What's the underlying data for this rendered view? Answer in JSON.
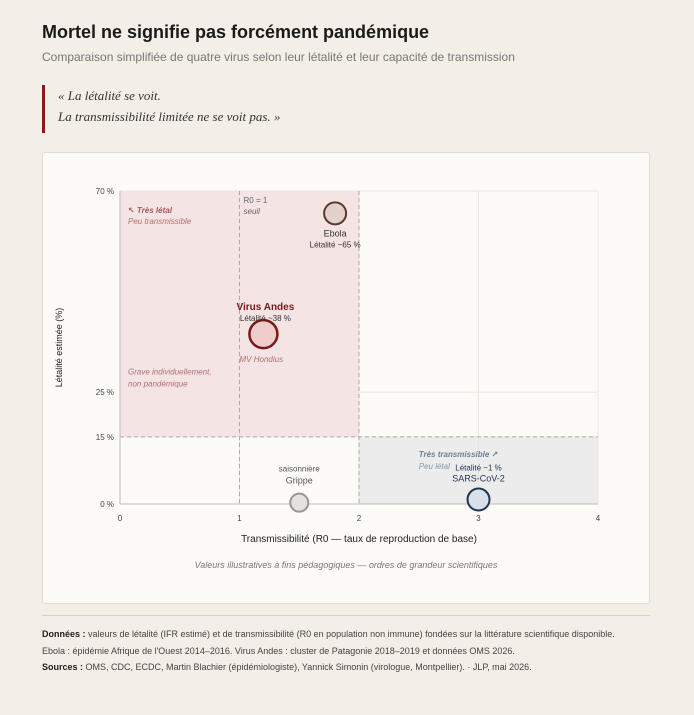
{
  "header": {
    "title": "Mortel ne signifie pas forcément pandémique",
    "subtitle": "Comparaison simplifiée de quatre virus selon leur létalité et leur capacité de transmission"
  },
  "quote": {
    "line1": "« La létalité se voit.",
    "line2": "La transmissibilité limitée ne se voit pas. »"
  },
  "chart_data": {
    "type": "scatter",
    "xlabel": "Transmissibilité (R0 — taux de reproduction de base)",
    "ylabel": "Létalité estimée (%)",
    "xlim": [
      0,
      4
    ],
    "ylim": [
      0,
      70
    ],
    "x_ticks": [
      "0",
      "1",
      "2",
      "3",
      "4"
    ],
    "y_ticks": [
      {
        "value": 0,
        "label": "0 %"
      },
      {
        "value": 15,
        "label": "15 %"
      },
      {
        "value": 25,
        "label": "25 %"
      },
      {
        "value": 70,
        "label": "70 %"
      }
    ],
    "grid": true,
    "threshold_line": {
      "x": 1,
      "label_line1": "R0 = 1",
      "label_line2": "seuil"
    },
    "zones": [
      {
        "id": "lethal",
        "title": "↖ Très létal",
        "subtitle": "Peu transmissible",
        "x_range": [
          0,
          2
        ],
        "y_range": [
          15,
          70
        ],
        "color": "#f5e4e4"
      },
      {
        "id": "transmissible",
        "title": "Très transmissible ↗",
        "subtitle": "Peu létal",
        "x_range": [
          2,
          4
        ],
        "y_range": [
          0,
          15
        ],
        "color": "#ececec"
      }
    ],
    "zone_annotation": {
      "line1": "Grave individuellement,",
      "line2": "non pandémique"
    },
    "points": [
      {
        "name": "Ebola",
        "x": 1.8,
        "y": 65,
        "label": "Ebola",
        "sublabel": "Létalité ~65 %",
        "fill": "#e3d2cc",
        "stroke": "#5a3a2e",
        "emphasis": false
      },
      {
        "name": "Virus Andes",
        "x": 1.2,
        "y": 38,
        "label": "Virus Andes",
        "sublabel": "Létalité ~38 %",
        "annotation": "MV Hondius",
        "fill": "#f0cccc",
        "stroke": "#7a1a1a",
        "emphasis": true
      },
      {
        "name": "Grippe saisonnière",
        "x": 1.5,
        "y": 0.3,
        "label": "Grippe",
        "label_line2": "saisonnière",
        "fill": "#e4e2de",
        "stroke": "#9a9690",
        "emphasis": false
      },
      {
        "name": "SARS-CoV-2",
        "x": 3.0,
        "y": 1,
        "label": "SARS-CoV-2",
        "sublabel": "Létalité ~1 %",
        "fill": "#dae0e8",
        "stroke": "#1e3553",
        "emphasis": false
      }
    ],
    "note": "Valeurs illustratives à fins pédagogiques — ordres de grandeur scientifiques"
  },
  "footer": {
    "data_label": "Données :",
    "data_text": " valeurs de létalité (IFR estimé) et de transmissibilité (R0 en population non immune) fondées sur la littérature scientifique disponible.",
    "line2": "Ebola : épidémie Afrique de l'Ouest 2014–2016. Virus Andes : cluster de Patagonie 2018–2019 et données OMS 2026.",
    "sources_label": "Sources :",
    "sources_text": " OMS, CDC, ECDC, Martin Blachier (épidémiologiste), Yannick Simonin (virologue, Montpellier). · JLP, mai 2026."
  }
}
